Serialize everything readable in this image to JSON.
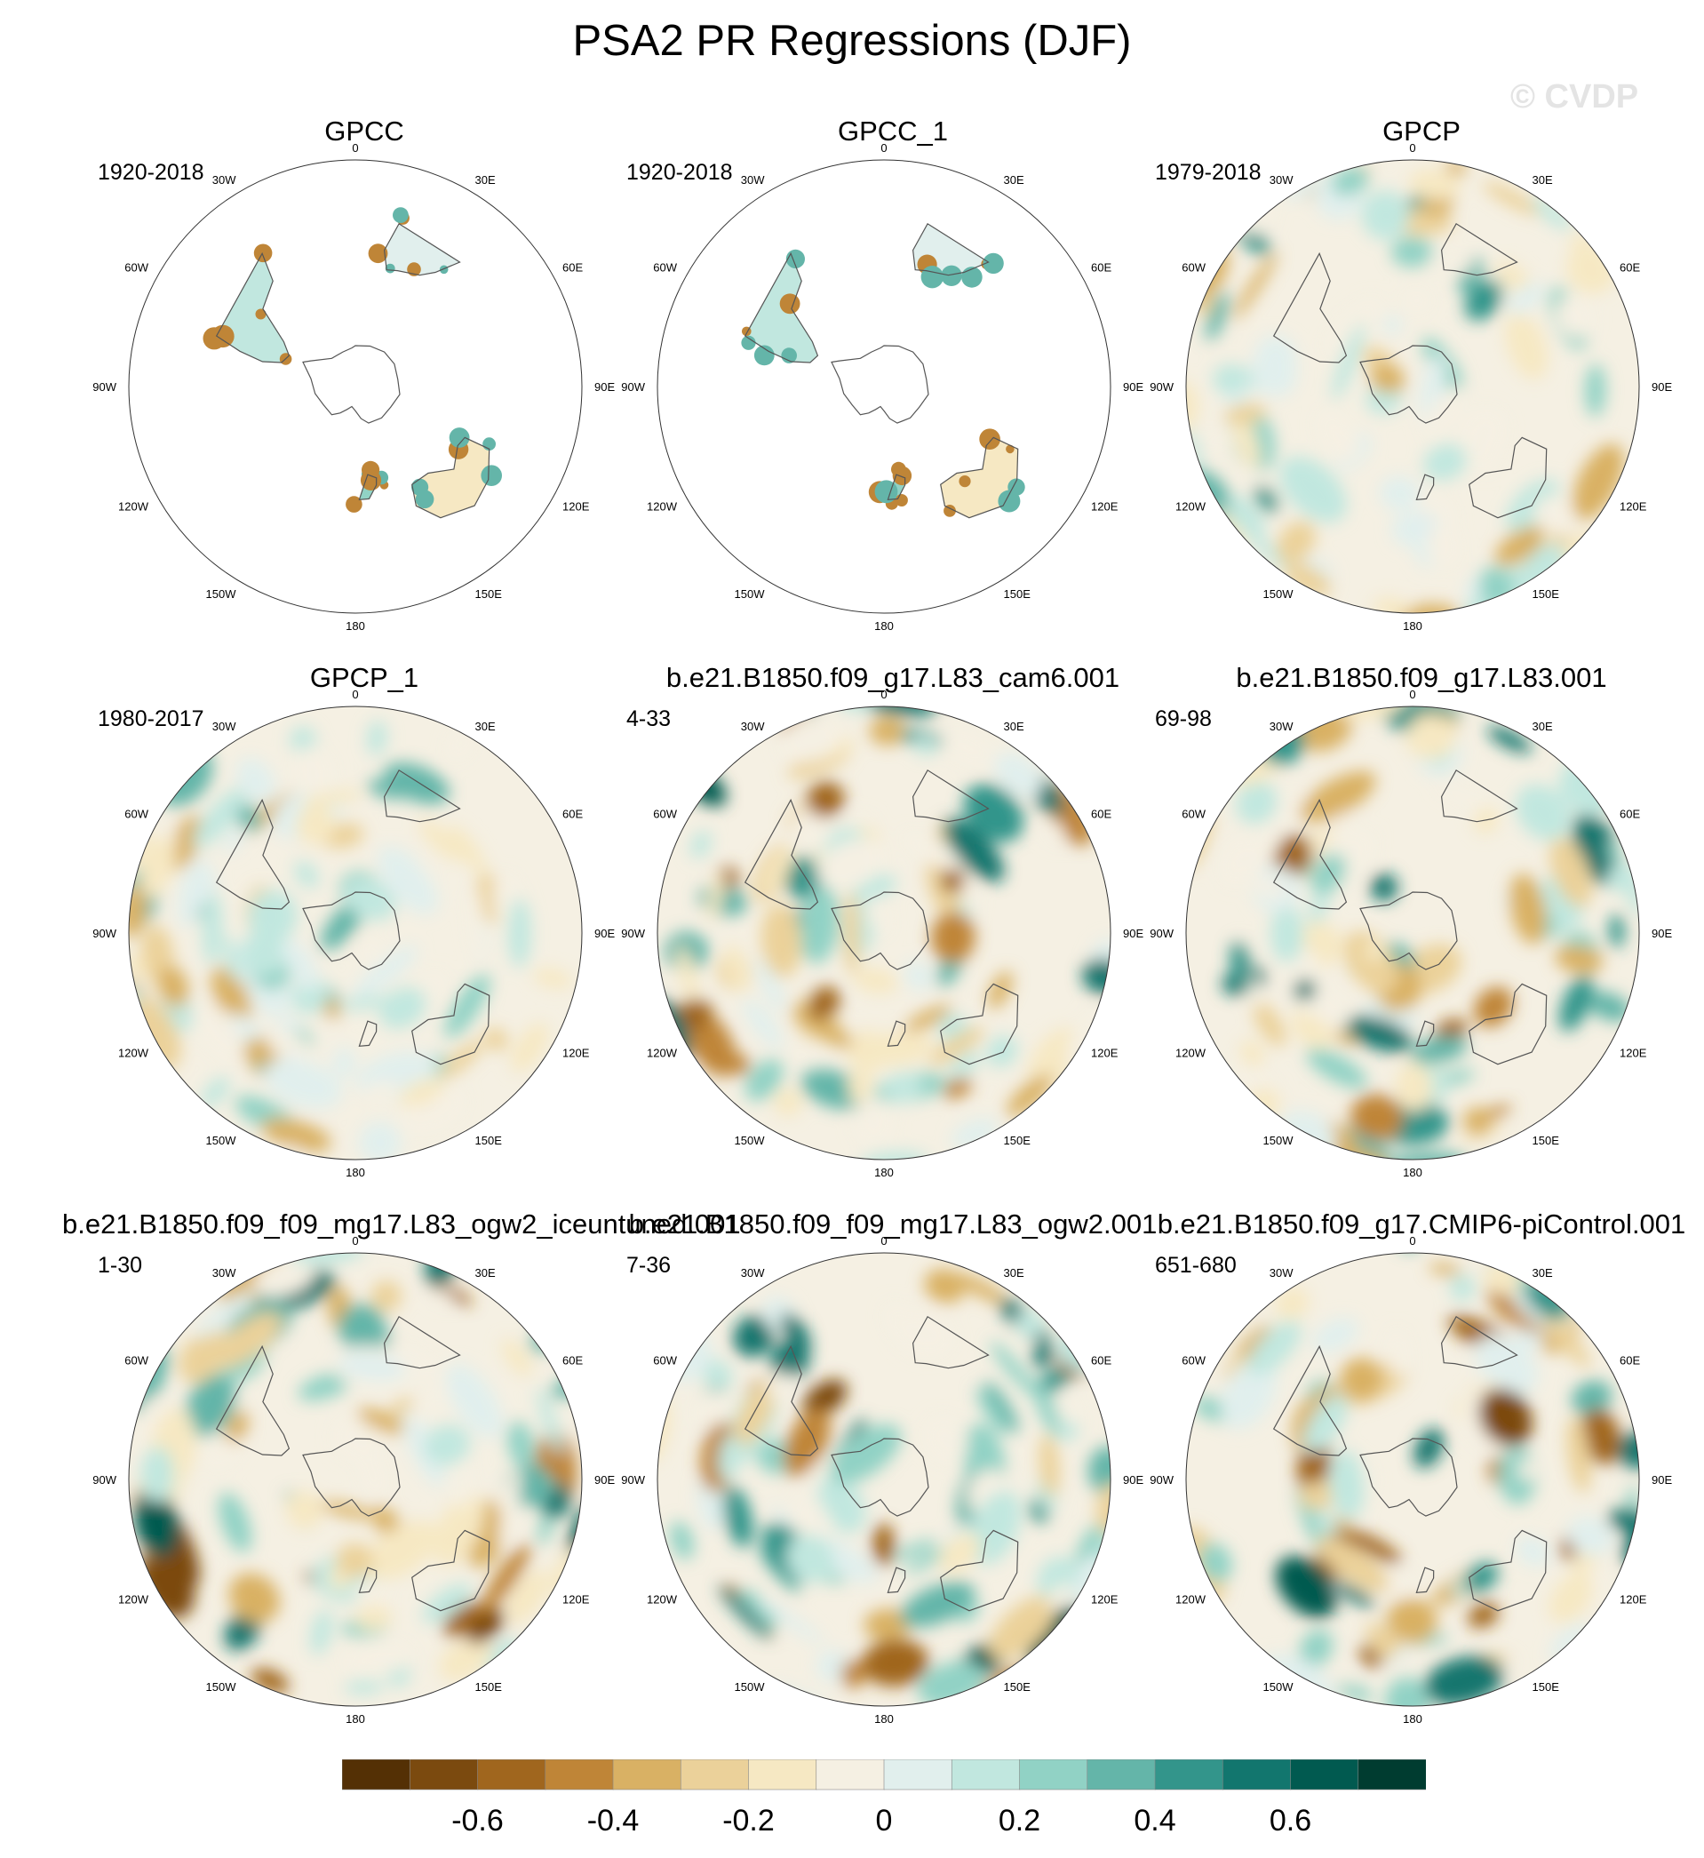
{
  "figure": {
    "title": "PSA2 PR Regressions (DJF)",
    "watermark": "© CVDP"
  },
  "chart_data": [
    {
      "type": "heatmap",
      "title": "GPCC",
      "period": "1920-2018",
      "coverage": "land-only",
      "intensity": 0.6
    },
    {
      "type": "heatmap",
      "title": "GPCC_1",
      "period": "1920-2018",
      "coverage": "land-only",
      "intensity": 0.7
    },
    {
      "type": "heatmap",
      "title": "GPCP",
      "period": "1979-2018",
      "coverage": "global",
      "intensity": 0.55
    },
    {
      "type": "heatmap",
      "title": "GPCP_1",
      "period": "1980-2017",
      "coverage": "global",
      "intensity": 0.5
    },
    {
      "type": "heatmap",
      "title": "b.e21.B1850.f09_g17.L83_cam6.001",
      "period": "4-33",
      "coverage": "global",
      "intensity": 0.85
    },
    {
      "type": "heatmap",
      "title": "b.e21.B1850.f09_g17.L83.001",
      "period": "69-98",
      "coverage": "global",
      "intensity": 0.75
    },
    {
      "type": "heatmap",
      "title": "b.e21.B1850.f09_f09_mg17.L83_ogw2_iceuntuned.001",
      "period": "1-30",
      "coverage": "global",
      "intensity": 0.85
    },
    {
      "type": "heatmap",
      "title": "b.e21.B1850.f09_f09_mg17.L83_ogw2.001",
      "period": "7-36",
      "coverage": "global",
      "intensity": 0.85
    },
    {
      "type": "heatmap",
      "title": "b.e21.B1850.f09_g17.CMIP6-piControl.001",
      "period": "651-680",
      "coverage": "global",
      "intensity": 0.8
    }
  ],
  "map": {
    "projection": "south-polar-stereographic",
    "lon_labels": [
      "0",
      "30E",
      "60E",
      "90E",
      "120E",
      "150E",
      "180",
      "150W",
      "120W",
      "90W",
      "60W",
      "30W"
    ]
  },
  "colorbar": {
    "colors": [
      "#543005",
      "#7b4a0f",
      "#a0661e",
      "#bf8537",
      "#d9b164",
      "#ebd19a",
      "#f6e8c3",
      "#f5f0e3",
      "#e1efed",
      "#c1e7df",
      "#91d2c5",
      "#64b5a9",
      "#33958b",
      "#12766e",
      "#015a50",
      "#003c30"
    ],
    "tick_labels": [
      "-0.6",
      "-0.4",
      "-0.2",
      "0",
      "0.2",
      "0.4",
      "0.6"
    ],
    "tick_values": [
      -0.6,
      -0.4,
      -0.2,
      0,
      0.2,
      0.4,
      0.6
    ],
    "range": [
      -0.8,
      0.8
    ]
  }
}
